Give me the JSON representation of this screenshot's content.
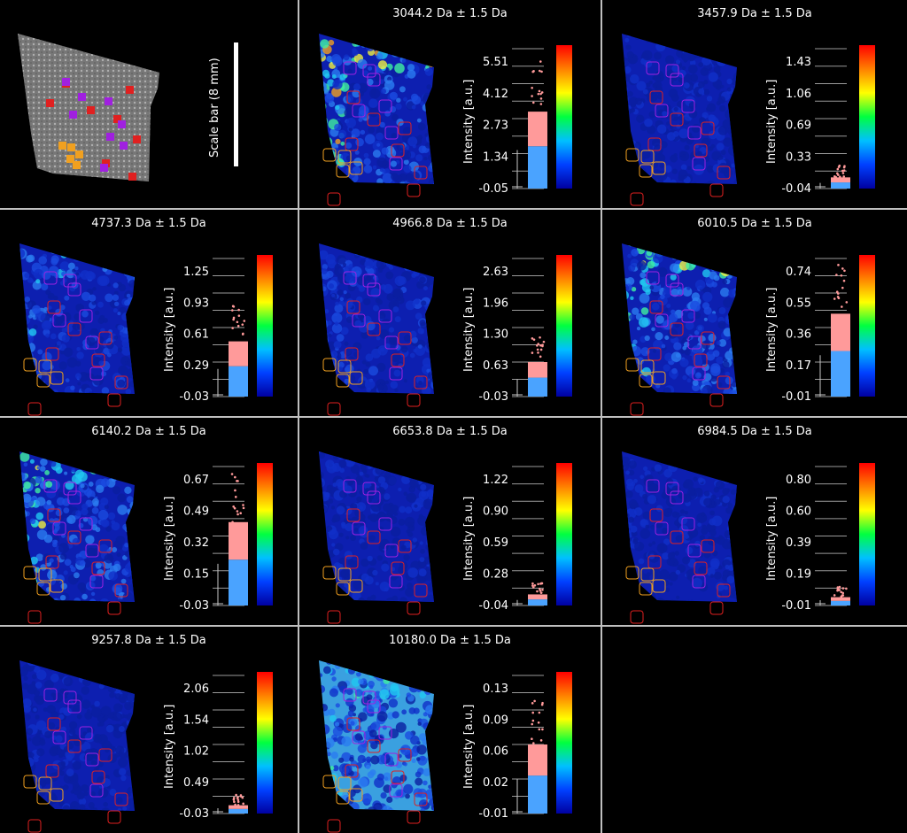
{
  "overview": {
    "scale_bar_label": "Scale bar (8 mm)",
    "roi_colors": [
      "#e02020",
      "#a020e0",
      "#f0a020"
    ]
  },
  "colorbar_stops": [
    "#ff0000",
    "#ff8000",
    "#ffff00",
    "#00ff40",
    "#00c0ff",
    "#0040ff",
    "#0000a0"
  ],
  "box_colors": {
    "high": "#ff9a9a",
    "low": "#4aa3ff",
    "whisker": "#c8c8c8",
    "outlier": "#ffffff"
  },
  "axis_label": "Intensity [a.u.]",
  "panels": [
    {
      "title": "3044.2 Da ± 1.5 Da",
      "ticks": [
        "5.51",
        "4.12",
        "2.73",
        "1.34",
        "-0.05"
      ],
      "fill": 0.55,
      "hot": 0.8
    },
    {
      "title": "3457.9 Da ± 1.5 Da",
      "ticks": [
        "1.43",
        "1.06",
        "0.69",
        "0.33",
        "-0.04"
      ],
      "fill": 0.08,
      "hot": 0.05
    },
    {
      "title": "4737.3 Da ± 1.5 Da",
      "ticks": [
        "1.25",
        "0.93",
        "0.61",
        "0.29",
        "-0.03"
      ],
      "fill": 0.4,
      "hot": 0.3
    },
    {
      "title": "4966.8 Da ± 1.5 Da",
      "ticks": [
        "2.63",
        "1.96",
        "1.30",
        "0.63",
        "-0.03"
      ],
      "fill": 0.25,
      "hot": 0.15
    },
    {
      "title": "6010.5 Da ± 1.5 Da",
      "ticks": [
        "0.74",
        "0.55",
        "0.36",
        "0.17",
        "-0.01"
      ],
      "fill": 0.6,
      "hot": 0.55
    },
    {
      "title": "6140.2 Da ± 1.5 Da",
      "ticks": [
        "0.67",
        "0.49",
        "0.32",
        "0.15",
        "-0.03"
      ],
      "fill": 0.6,
      "hot": 0.6
    },
    {
      "title": "6653.8 Da ± 1.5 Da",
      "ticks": [
        "1.22",
        "0.90",
        "0.59",
        "0.28",
        "-0.04"
      ],
      "fill": 0.08,
      "hot": 0.05
    },
    {
      "title": "6984.5 Da ± 1.5 Da",
      "ticks": [
        "0.80",
        "0.60",
        "0.39",
        "0.19",
        "-0.01"
      ],
      "fill": 0.06,
      "hot": 0.05
    },
    {
      "title": "9257.8 Da ± 1.5 Da",
      "ticks": [
        "2.06",
        "1.54",
        "1.02",
        "0.49",
        "-0.03"
      ],
      "fill": 0.06,
      "hot": 0.05
    },
    {
      "title": "10180.0 Da ± 1.5 Da",
      "ticks": [
        "0.13",
        "0.09",
        "0.06",
        "0.02",
        "-0.01"
      ],
      "fill": 0.5,
      "hot": 0.35
    }
  ]
}
